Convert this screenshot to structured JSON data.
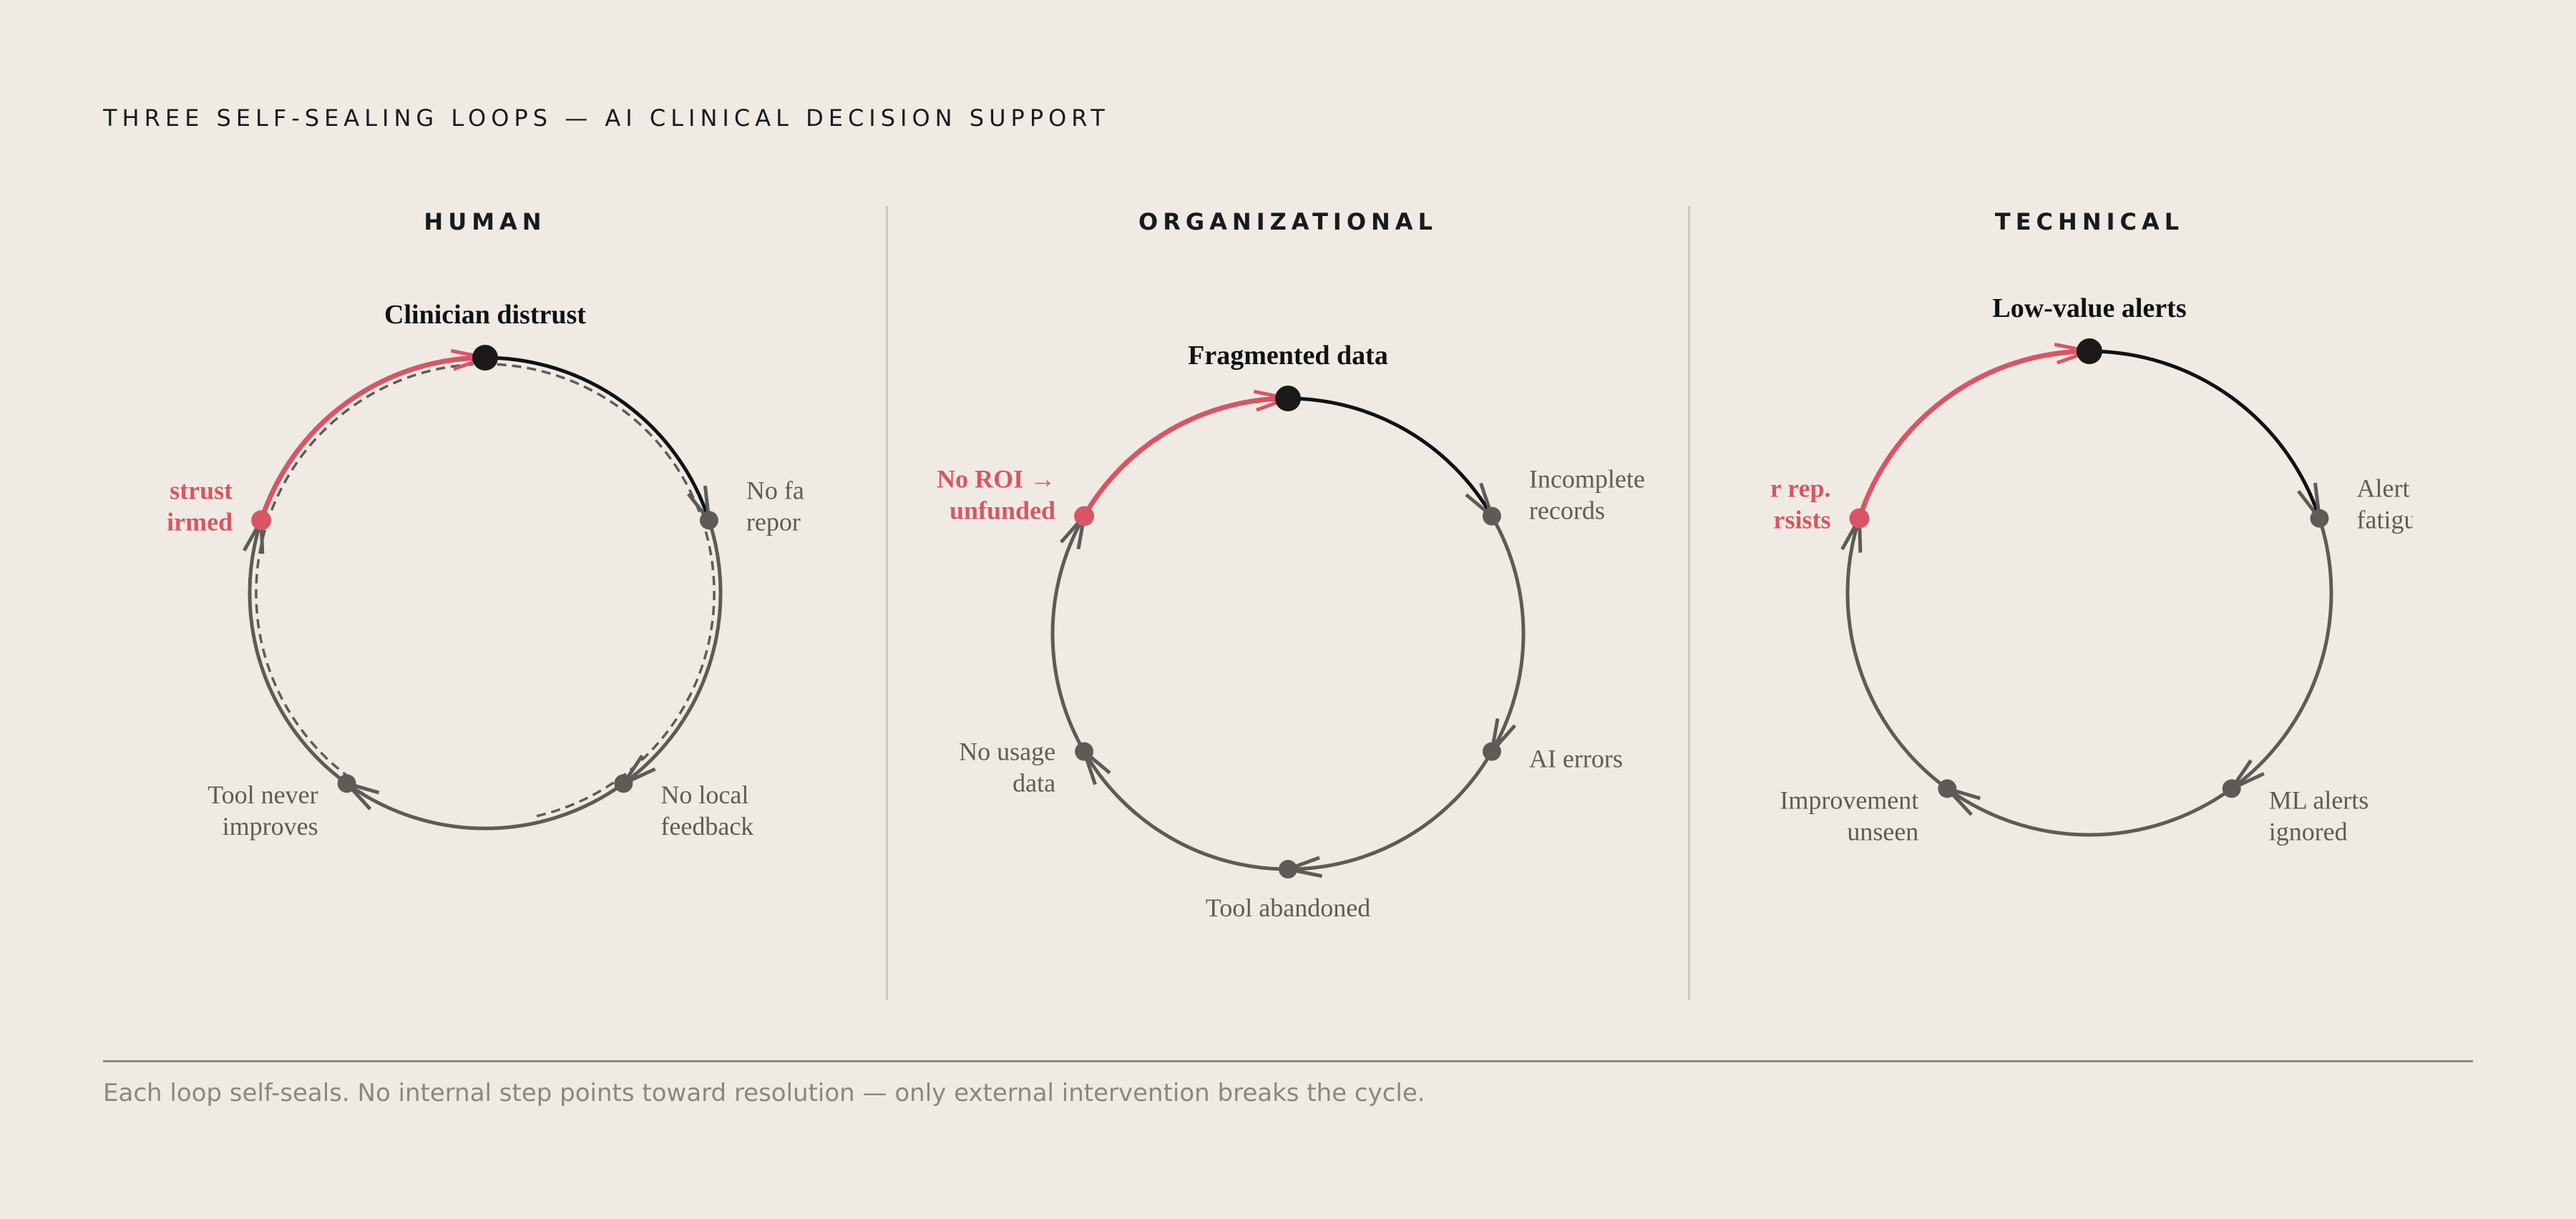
{
  "title": "THREE SELF-SEALING LOOPS — AI CLINICAL DECISION SUPPORT",
  "footer": "Each loop self-seals. No internal step points toward resolution — only external intervention breaks the cycle.",
  "colors": {
    "background": "#efebe4",
    "accent": "#d95565",
    "ink": "#111111",
    "muted": "#5e5b57"
  },
  "loops": [
    {
      "label": "HUMAN",
      "dashed_overlay": true,
      "nodes": [
        {
          "lines": [
            "Clinician distrust"
          ],
          "role": "start"
        },
        {
          "lines": [
            "No fa",
            "repor"
          ],
          "role": "normal"
        },
        {
          "lines": [
            "No local",
            "feedback"
          ],
          "role": "normal"
        },
        {
          "lines": [
            "Tool never",
            "improves"
          ],
          "role": "normal"
        },
        {
          "lines": [
            "strust",
            "irmed"
          ],
          "role": "highlight"
        }
      ]
    },
    {
      "label": "ORGANIZATIONAL",
      "dashed_overlay": false,
      "nodes": [
        {
          "lines": [
            "Fragmented data"
          ],
          "role": "start"
        },
        {
          "lines": [
            "Incomplete",
            "records"
          ],
          "role": "normal"
        },
        {
          "lines": [
            "AI errors"
          ],
          "role": "normal"
        },
        {
          "lines": [
            "Tool abandoned"
          ],
          "role": "normal"
        },
        {
          "lines": [
            "No usage",
            "data"
          ],
          "role": "normal"
        },
        {
          "lines": [
            "No ROI →",
            "unfunded"
          ],
          "role": "highlight"
        }
      ]
    },
    {
      "label": "TECHNICAL",
      "dashed_overlay": false,
      "nodes": [
        {
          "lines": [
            "Low-value alerts"
          ],
          "role": "start"
        },
        {
          "lines": [
            "Alert",
            "fatigu"
          ],
          "role": "normal"
        },
        {
          "lines": [
            "ML alerts",
            "ignored"
          ],
          "role": "normal"
        },
        {
          "lines": [
            "Improvement",
            "unseen"
          ],
          "role": "normal"
        },
        {
          "lines": [
            "r rep.",
            "rsists"
          ],
          "role": "highlight"
        }
      ]
    }
  ]
}
